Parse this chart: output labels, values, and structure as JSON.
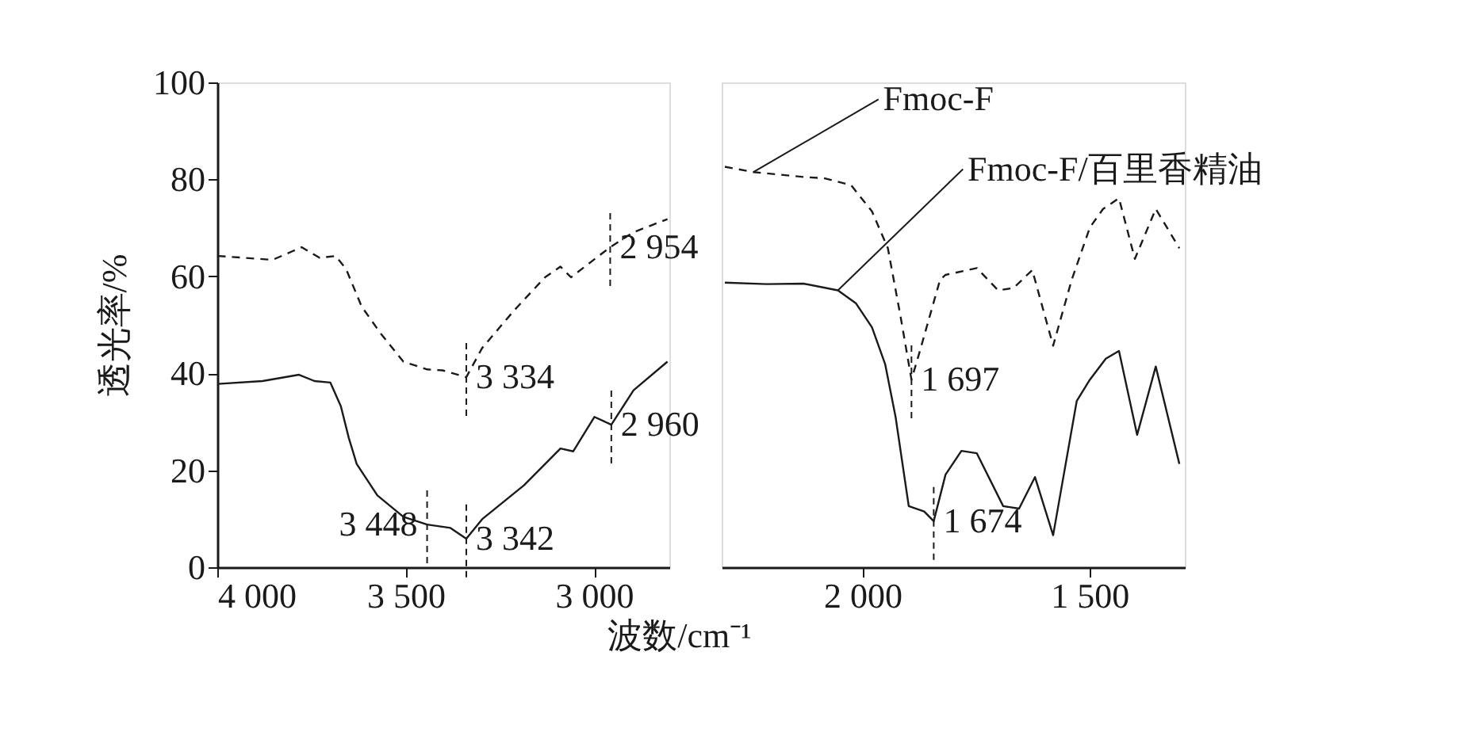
{
  "chart_data": [
    {
      "type": "line",
      "ylabel": "透光率/%",
      "xlabel": "波数/cm⁻¹",
      "xlim": [
        4000,
        2800
      ],
      "ylim": [
        0,
        100
      ],
      "xticks": [
        {
          "value": 4000,
          "label": "4 000"
        },
        {
          "value": 3500,
          "label": "3 500"
        },
        {
          "value": 3000,
          "label": "3 000"
        }
      ],
      "yticks": [
        0,
        20,
        40,
        60,
        80,
        100
      ],
      "grid": false,
      "marker": "none",
      "tick_labels": "xy",
      "series": [
        {
          "color": "#1a1a1a",
          "line_style": "dashed",
          "x": [
            3999,
            3853,
            3800,
            3776,
            3728,
            3686,
            3658,
            3617,
            3568,
            3506,
            3443,
            3402,
            3339,
            3297,
            3214,
            3130,
            3089,
            3061,
            3006,
            2957,
            2895,
            2805
          ],
          "values": [
            64.2,
            63.4,
            65.2,
            66.0,
            63.8,
            64.2,
            61.5,
            53.8,
            48.4,
            42.4,
            40.8,
            40.6,
            39.2,
            45.2,
            52.8,
            59.8,
            62.0,
            59.8,
            63.1,
            66.0,
            69.1,
            71.8
          ]
        },
        {
          "color": "#1a1a1a",
          "line_style": "solid",
          "x": [
            3999,
            3880,
            3783,
            3742,
            3700,
            3672,
            3651,
            3630,
            3575,
            3506,
            3443,
            3381,
            3339,
            3297,
            3186,
            3089,
            3055,
            2999,
            2954,
            2895,
            2805
          ],
          "values": [
            37.8,
            38.4,
            39.7,
            38.4,
            38.1,
            33.2,
            26.7,
            21.3,
            14.8,
            10.4,
            8.8,
            8.1,
            5.9,
            9.9,
            16.9,
            24.5,
            23.9,
            31.0,
            29.4,
            36.5,
            42.4
          ]
        }
      ],
      "annotations": [
        {
          "text": "2 954",
          "x": 2957,
          "y": 66.0
        },
        {
          "text": "3 334",
          "x": 3339,
          "y": 39.2
        },
        {
          "text": "2 960",
          "x": 2954,
          "y": 29.4
        },
        {
          "text": "3 448",
          "x": 3443,
          "y": 8.8
        },
        {
          "text": "3 342",
          "x": 3339,
          "y": 5.9
        }
      ]
    },
    {
      "type": "line",
      "xlim": [
        2310,
        1290
      ],
      "ylim": [
        0,
        100
      ],
      "xticks": [
        {
          "value": 2000,
          "label": "2 000"
        },
        {
          "value": 1500,
          "label": "1 500"
        }
      ],
      "grid": false,
      "legend": false,
      "marker": "none",
      "tick_labels": "x",
      "series": [
        {
          "name": "Fmoc-F",
          "color": "#1a1a1a",
          "line_style": "dashed",
          "x": [
            2303,
            2240,
            2130,
            2083,
            2025,
            1979,
            1944,
            1916,
            1892,
            1875,
            1829,
            1817,
            1748,
            1701,
            1667,
            1626,
            1580,
            1539,
            1499,
            1470,
            1435,
            1400,
            1354,
            1302
          ],
          "values": [
            82.6,
            81.5,
            80.5,
            80.2,
            78.8,
            73.4,
            65.8,
            51.7,
            38.7,
            44.1,
            59.3,
            60.3,
            61.7,
            57.1,
            57.6,
            61.3,
            45.7,
            59.3,
            70.1,
            73.9,
            76.1,
            63.6,
            73.9,
            65.8
          ]
        },
        {
          "name": "Fmoc-F/百里香精油",
          "color": "#1a1a1a",
          "line_style": "solid",
          "x": [
            2303,
            2211,
            2130,
            2054,
            2014,
            1979,
            1950,
            1927,
            1898,
            1864,
            1843,
            1817,
            1782,
            1748,
            1690,
            1655,
            1620,
            1580,
            1528,
            1499,
            1464,
            1435,
            1395,
            1354,
            1302
          ],
          "values": [
            58.7,
            58.4,
            58.5,
            57.1,
            54.4,
            49.5,
            41.9,
            31.0,
            12.6,
            11.5,
            9.5,
            19.1,
            24.0,
            23.5,
            12.6,
            12.1,
            18.6,
            6.6,
            34.3,
            38.7,
            43.0,
            44.6,
            27.3,
            41.4,
            21.3
          ]
        }
      ],
      "annotations": [
        {
          "text": "1 697",
          "x": 1892,
          "y": 38.7
        },
        {
          "text": "1 674",
          "x": 1843,
          "y": 9.5
        }
      ]
    }
  ]
}
